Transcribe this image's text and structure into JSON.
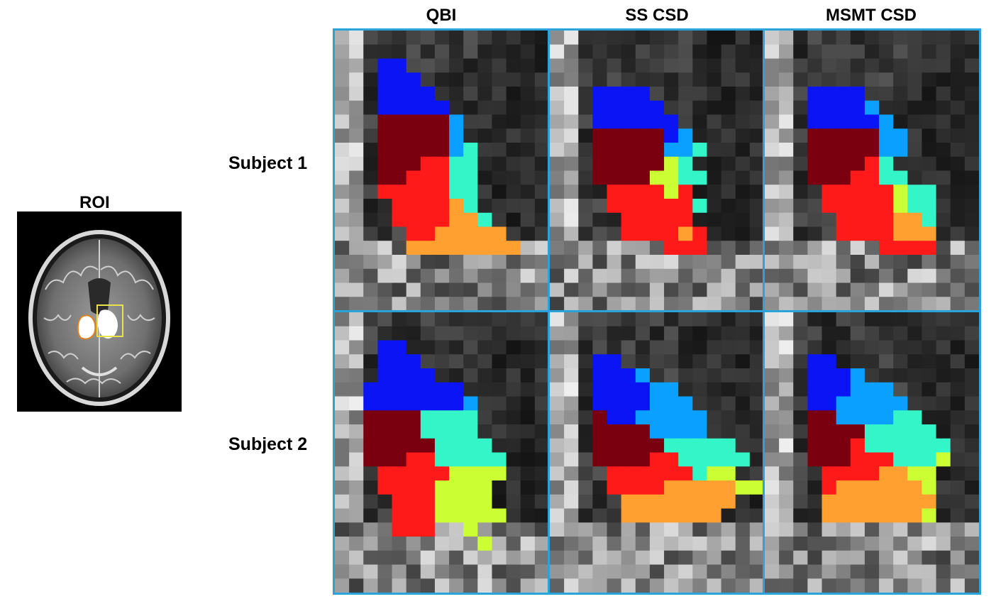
{
  "roi": {
    "title": "ROI"
  },
  "columns": [
    "QBI",
    "SS CSD",
    "MSMT CSD"
  ],
  "rows": [
    "Subject 1",
    "Subject 2"
  ],
  "colors": {
    "frame": "#29a3db",
    "roi_box": "#e8e34a",
    "parcels": [
      "#0a14f5",
      "#7a0010",
      "#0aa0ff",
      "#33f5c8",
      "#ff1a1a",
      "#ffa030",
      "#ccff33"
    ]
  }
}
